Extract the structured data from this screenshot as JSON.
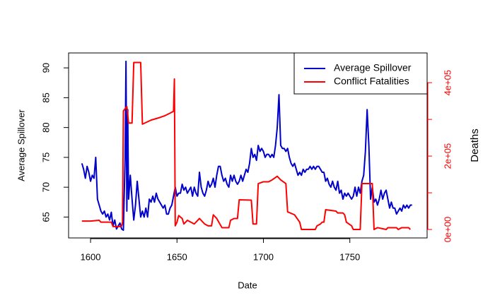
{
  "chart_data": {
    "type": "line",
    "xlabel": "Date",
    "ylabel": "Average Spillover",
    "y2label": "Deaths",
    "xlim": [
      1587.3,
      1794.7
    ],
    "ylim": [
      61.5,
      92.5
    ],
    "y2lim": [
      -23000,
      481000
    ],
    "xticks": [
      1600,
      1650,
      1700,
      1750
    ],
    "yticks": [
      65,
      70,
      75,
      80,
      85,
      90
    ],
    "y2ticks": [
      {
        "value": 0,
        "label": "0e+00"
      },
      {
        "value": 200000,
        "label": "2e+05"
      },
      {
        "value": 400000,
        "label": "4e+05"
      }
    ],
    "y2ticks_minor": [
      100000,
      300000
    ],
    "y2color": "#ff0000",
    "legend": "topright",
    "series": [
      {
        "name": "Average Spillover",
        "color": "#0000cc",
        "x": [
          1595,
          1596,
          1597,
          1598,
          1599,
          1600,
          1601,
          1602,
          1603,
          1604,
          1605,
          1606,
          1607,
          1608,
          1609,
          1610,
          1611,
          1612,
          1613,
          1614,
          1615,
          1616,
          1617,
          1618,
          1619,
          1620,
          1620.5,
          1621,
          1621.5,
          1622,
          1623,
          1624,
          1625,
          1626,
          1627,
          1628,
          1629,
          1630,
          1631,
          1632,
          1633,
          1634,
          1635,
          1636,
          1637,
          1638,
          1639,
          1640,
          1641,
          1642,
          1643,
          1644,
          1645,
          1646,
          1647,
          1648,
          1649,
          1650,
          1651,
          1652,
          1653,
          1654,
          1655,
          1656,
          1657,
          1658,
          1659,
          1660,
          1661,
          1662,
          1663,
          1664,
          1665,
          1666,
          1667,
          1668,
          1669,
          1670,
          1671,
          1672,
          1673,
          1674,
          1675,
          1676,
          1677,
          1678,
          1679,
          1680,
          1681,
          1682,
          1683,
          1684,
          1685,
          1686,
          1687,
          1688,
          1689,
          1690,
          1691,
          1692,
          1693,
          1694,
          1695,
          1696,
          1697,
          1698,
          1699,
          1700,
          1701,
          1702,
          1703,
          1704,
          1705,
          1706,
          1707,
          1708,
          1709,
          1710,
          1711,
          1712,
          1713,
          1714,
          1715,
          1716,
          1717,
          1718,
          1719,
          1720,
          1721,
          1722,
          1723,
          1724,
          1725,
          1726,
          1727,
          1728,
          1729,
          1730,
          1731,
          1732,
          1733,
          1734,
          1735,
          1736,
          1737,
          1738,
          1739,
          1740,
          1741,
          1742,
          1743,
          1744,
          1745,
          1746,
          1747,
          1748,
          1749,
          1750,
          1751,
          1752,
          1753,
          1754,
          1755,
          1756,
          1757,
          1758,
          1759,
          1760,
          1761,
          1762,
          1763,
          1764,
          1765,
          1766,
          1767,
          1768,
          1769,
          1770,
          1771,
          1772,
          1773,
          1774,
          1775,
          1776,
          1777,
          1778,
          1779,
          1780,
          1781,
          1782,
          1783,
          1784,
          1785,
          1786
        ],
        "values": [
          74,
          73,
          71.5,
          73.5,
          72.5,
          71,
          72,
          71.5,
          75,
          68,
          67,
          66,
          65.5,
          66,
          65,
          65.5,
          64.5,
          65.8,
          63.5,
          64.5,
          63,
          63.5,
          64,
          63,
          62.8,
          75,
          91.1,
          66,
          83,
          68,
          72,
          68,
          64.5,
          67,
          71,
          68,
          65,
          66,
          65,
          66.5,
          65,
          68,
          67.5,
          68.5,
          67.5,
          69,
          68,
          67.5,
          67,
          66.5,
          67,
          65.5,
          65.5,
          66.5,
          67,
          68.5,
          70,
          68.5,
          69,
          69,
          70.5,
          69.5,
          70,
          69,
          69.5,
          70,
          68.5,
          70,
          69,
          68.5,
          72.5,
          70,
          69,
          68.5,
          69.5,
          71,
          70,
          70.5,
          71.5,
          70,
          72,
          73.5,
          73.5,
          72,
          71,
          71.5,
          70.5,
          70,
          72,
          71,
          72,
          71,
          70.5,
          71,
          72,
          71,
          72,
          73,
          72.5,
          74,
          76.5,
          75,
          75.5,
          74.5,
          77,
          76,
          76.5,
          76,
          75,
          75.5,
          75.5,
          75,
          75.5,
          75,
          77,
          80,
          85.5,
          77,
          76.5,
          76.5,
          76,
          76.5,
          75,
          74,
          73.5,
          74,
          73,
          72,
          72.5,
          72,
          73,
          72.5,
          73,
          73,
          73.5,
          73,
          73.5,
          73,
          73.5,
          73.5,
          73,
          72.5,
          72.5,
          71,
          71.5,
          70.5,
          70,
          71,
          70,
          69.5,
          71,
          69,
          69.5,
          68,
          69,
          68.5,
          69,
          68.5,
          68,
          68.5,
          70,
          68.5,
          70,
          69,
          71,
          72,
          76,
          83,
          77,
          68,
          70,
          67.5,
          68,
          67,
          68,
          69.5,
          68,
          69,
          69.5,
          68,
          66.5,
          67.5,
          66.5,
          66.5,
          65.5,
          66,
          66.5,
          66,
          67,
          66.5,
          67,
          66.5,
          67,
          67
        ]
      },
      {
        "name": "Conflict Fatalities",
        "color": "#ff0000",
        "axis": "y2",
        "x": [
          1595,
          1600,
          1605,
          1606,
          1612,
          1613,
          1617,
          1618,
          1618.5,
          1619,
          1621,
          1622,
          1624,
          1625,
          1629,
          1630,
          1635,
          1640,
          1643,
          1646,
          1648,
          1648.5,
          1649,
          1650,
          1651,
          1653,
          1654,
          1656,
          1658,
          1660,
          1662,
          1663,
          1666,
          1668,
          1670,
          1671,
          1673,
          1676,
          1680,
          1681,
          1683,
          1685,
          1686,
          1693,
          1694,
          1696,
          1697,
          1700,
          1703,
          1705,
          1708,
          1710,
          1713,
          1714,
          1718,
          1721,
          1722,
          1728,
          1730,
          1731,
          1733,
          1734,
          1735,
          1736,
          1742,
          1743,
          1746,
          1747,
          1748,
          1751,
          1752,
          1756,
          1757,
          1763,
          1764,
          1766,
          1771,
          1772,
          1777,
          1778,
          1780,
          1784,
          1785
        ],
        "values": [
          23000,
          23000,
          25000,
          20000,
          20000,
          8000,
          8000,
          10000,
          20000,
          323000,
          335000,
          290000,
          290000,
          455000,
          455000,
          287000,
          298000,
          305000,
          310000,
          317000,
          322000,
          410000,
          10000,
          20000,
          38000,
          30000,
          15000,
          25000,
          20000,
          15000,
          25000,
          30000,
          15000,
          10000,
          10000,
          40000,
          30000,
          5000,
          5000,
          25000,
          30000,
          30000,
          81000,
          80000,
          15000,
          15000,
          125000,
          130000,
          130000,
          135000,
          145000,
          135000,
          125000,
          48000,
          40000,
          20000,
          0,
          0,
          0,
          10000,
          15000,
          20000,
          20000,
          54000,
          50000,
          45000,
          45000,
          40000,
          20000,
          10000,
          0,
          0,
          125000,
          125000,
          0,
          5000,
          0,
          5000,
          5000,
          0,
          5000,
          5000,
          0
        ]
      }
    ]
  }
}
